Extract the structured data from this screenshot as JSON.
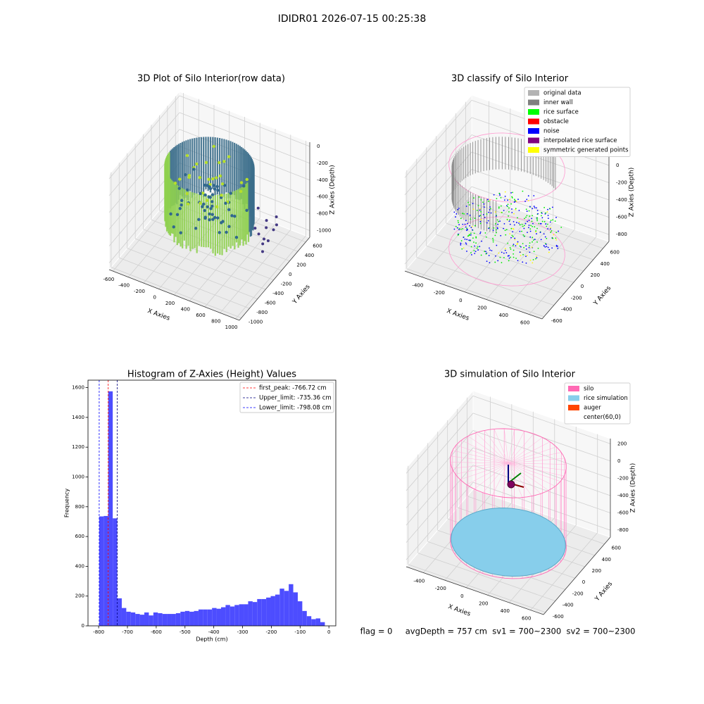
{
  "title": "IDIDR01 2026-07-15 00:25:38",
  "footer": "flag = 0     avgDepth = 757 cm  sv1 = 700~2300  sv2 = 700~2300",
  "chart_data": [
    {
      "type": "scatter3d",
      "title": "3D Plot of Silo Interior(row data)",
      "xlabel": "X Axies",
      "ylabel": "Y Axies",
      "zlabel": "Z Axies (Depth)",
      "xlim": [
        -650,
        1050
      ],
      "ylim": [
        -1050,
        700
      ],
      "zlim": [
        -1080,
        50
      ],
      "xticks": [
        -600,
        -400,
        -200,
        0,
        200,
        400,
        600,
        800,
        1000
      ],
      "yticks": [
        -1000,
        -800,
        -600,
        -400,
        -200,
        0,
        200,
        400,
        600
      ],
      "zticks": [
        -1000,
        -800,
        -600,
        -400,
        -200,
        0
      ]
    },
    {
      "type": "scatter3d",
      "title": "3D classify of Silo Interior",
      "xlabel": "X Axies",
      "ylabel": "Y Axies",
      "zlabel": "Z Axies (Depth)",
      "xlim": [
        -560,
        720
      ],
      "ylim": [
        -640,
        720
      ],
      "zlim": [
        -880,
        260
      ],
      "xticks": [
        -400,
        -200,
        0,
        200,
        400,
        600
      ],
      "yticks": [
        -600,
        -400,
        -200,
        0,
        200,
        400,
        600
      ],
      "zticks": [
        -800,
        -600,
        -400,
        -200,
        0,
        200
      ],
      "legend": [
        {
          "name": "original data",
          "color": "#b3b3b3"
        },
        {
          "name": "inner wall",
          "color": "#808080"
        },
        {
          "name": "rice surface",
          "color": "#00ff00"
        },
        {
          "name": "obstacle",
          "color": "#ff0000"
        },
        {
          "name": "noise",
          "color": "#0000ff"
        },
        {
          "name": "interpolated rice surface",
          "color": "#800080"
        },
        {
          "name": "symmetric generated points",
          "color": "#ffff00"
        }
      ]
    },
    {
      "type": "histogram",
      "title": "Histogram of Z-Axies (Height) Values",
      "xlabel": "Depth (cm)",
      "ylabel": "Frequency",
      "color": "#4d4dff",
      "bins": [
        -798.08,
        -782.4,
        -766.72,
        -751.04,
        -735.36,
        -719.68,
        -704.0,
        -688.32,
        -672.64,
        -656.96,
        -641.28,
        -625.6,
        -609.92,
        -594.24,
        -578.56,
        -562.88,
        -547.2,
        -531.52,
        -515.84,
        -500.16,
        -484.48,
        -468.8,
        -453.12,
        -437.44,
        -421.76,
        -406.08,
        -390.4,
        -374.72,
        -359.04,
        -343.36,
        -327.68,
        -312.0,
        -296.32,
        -280.64,
        -264.96,
        -249.28,
        -233.6,
        -217.92,
        -202.24,
        -186.56,
        -170.88,
        -155.2,
        -139.52,
        -123.84,
        -108.16,
        -92.48,
        -76.8,
        -61.12,
        -45.44,
        -29.76,
        -14.08
      ],
      "values": [
        735,
        738,
        1575,
        722,
        185,
        120,
        95,
        90,
        80,
        75,
        90,
        70,
        90,
        85,
        80,
        80,
        80,
        85,
        95,
        100,
        95,
        100,
        110,
        110,
        110,
        120,
        115,
        125,
        140,
        130,
        140,
        145,
        145,
        165,
        160,
        180,
        180,
        190,
        200,
        210,
        250,
        235,
        280,
        225,
        165,
        100,
        65,
        45,
        50,
        25
      ],
      "xlim": [
        -837,
        24
      ],
      "ylim": [
        0,
        1650
      ],
      "xticks": [
        -800,
        -700,
        -600,
        -500,
        -400,
        -300,
        -200,
        -100,
        0
      ],
      "yticks": [
        0,
        200,
        400,
        600,
        800,
        1000,
        1200,
        1400,
        1600
      ],
      "legend_position": "upper right",
      "vlines": [
        {
          "name": "first_peak: -766.72 cm",
          "value": -766.72,
          "color": "#ff0000"
        },
        {
          "name": "Upper_limit: -735.36 cm",
          "value": -735.36,
          "color": "#000080"
        },
        {
          "name": "Lower_limit: -798.08 cm",
          "value": -798.08,
          "color": "#0000ff"
        }
      ]
    },
    {
      "type": "scatter3d",
      "title": "3D simulation of Silo Interior",
      "xlabel": "X Axies",
      "ylabel": "Y Axies",
      "zlabel": "Z Axies (Depth)",
      "xlim": [
        -560,
        720
      ],
      "ylim": [
        -640,
        720
      ],
      "zlim": [
        -880,
        260
      ],
      "xticks": [
        -400,
        -200,
        0,
        200,
        400,
        600
      ],
      "yticks": [
        -600,
        -400,
        -200,
        0,
        200,
        400,
        600
      ],
      "zticks": [
        -800,
        -600,
        -400,
        -200,
        0,
        200
      ],
      "legend": [
        {
          "name": "silo",
          "color": "#ff69b4"
        },
        {
          "name": "rice simulation",
          "color": "#87ceeb"
        },
        {
          "name": "auger",
          "color": "#ff4500"
        },
        {
          "name": "center(60,0)",
          "color": "#ffffff"
        }
      ]
    }
  ]
}
